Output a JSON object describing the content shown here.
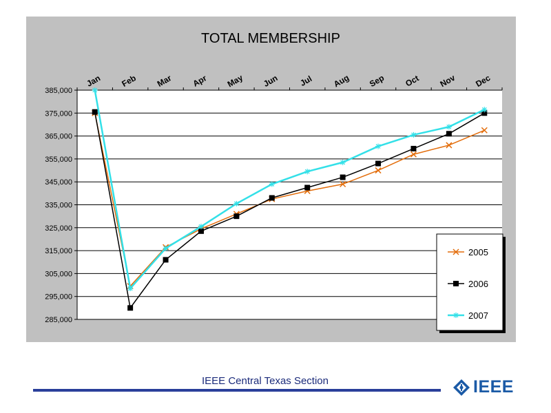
{
  "chart_data": {
    "type": "line",
    "title": "TOTAL MEMBERSHIP",
    "categories": [
      "Jan",
      "Feb",
      "Mar",
      "Apr",
      "May",
      "Jun",
      "Jul",
      "Aug",
      "Sep",
      "Oct",
      "Nov",
      "Dec"
    ],
    "ylim": [
      285000,
      385000
    ],
    "yticks": [
      285000,
      295000,
      305000,
      315000,
      325000,
      335000,
      345000,
      355000,
      365000,
      375000,
      385000
    ],
    "ytick_labels": [
      "285,000",
      "295,000",
      "305,000",
      "315,000",
      "325,000",
      "335,000",
      "345,000",
      "355,000",
      "365,000",
      "375,000",
      "385,000"
    ],
    "grid": "horizontal",
    "legend_position": "right",
    "series": [
      {
        "name": "2005",
        "color": "#e36c09",
        "marker": "x",
        "values": [
          375000,
          299500,
          316500,
          324500,
          331000,
          337500,
          341000,
          344000,
          350000,
          357000,
          361000,
          367500
        ]
      },
      {
        "name": "2006",
        "color": "#000000",
        "marker": "square",
        "values": [
          375500,
          290000,
          311000,
          323500,
          330000,
          338000,
          342500,
          347000,
          353000,
          359500,
          366000,
          375000
        ]
      },
      {
        "name": "2007",
        "color": "#33e0e8",
        "marker": "star",
        "values": [
          385000,
          298500,
          316000,
          325500,
          335500,
          344000,
          349500,
          353500,
          360500,
          365500,
          369000,
          376500
        ]
      }
    ]
  },
  "footer": {
    "text": "IEEE Central Texas Section",
    "logo_text": "IEEE"
  }
}
